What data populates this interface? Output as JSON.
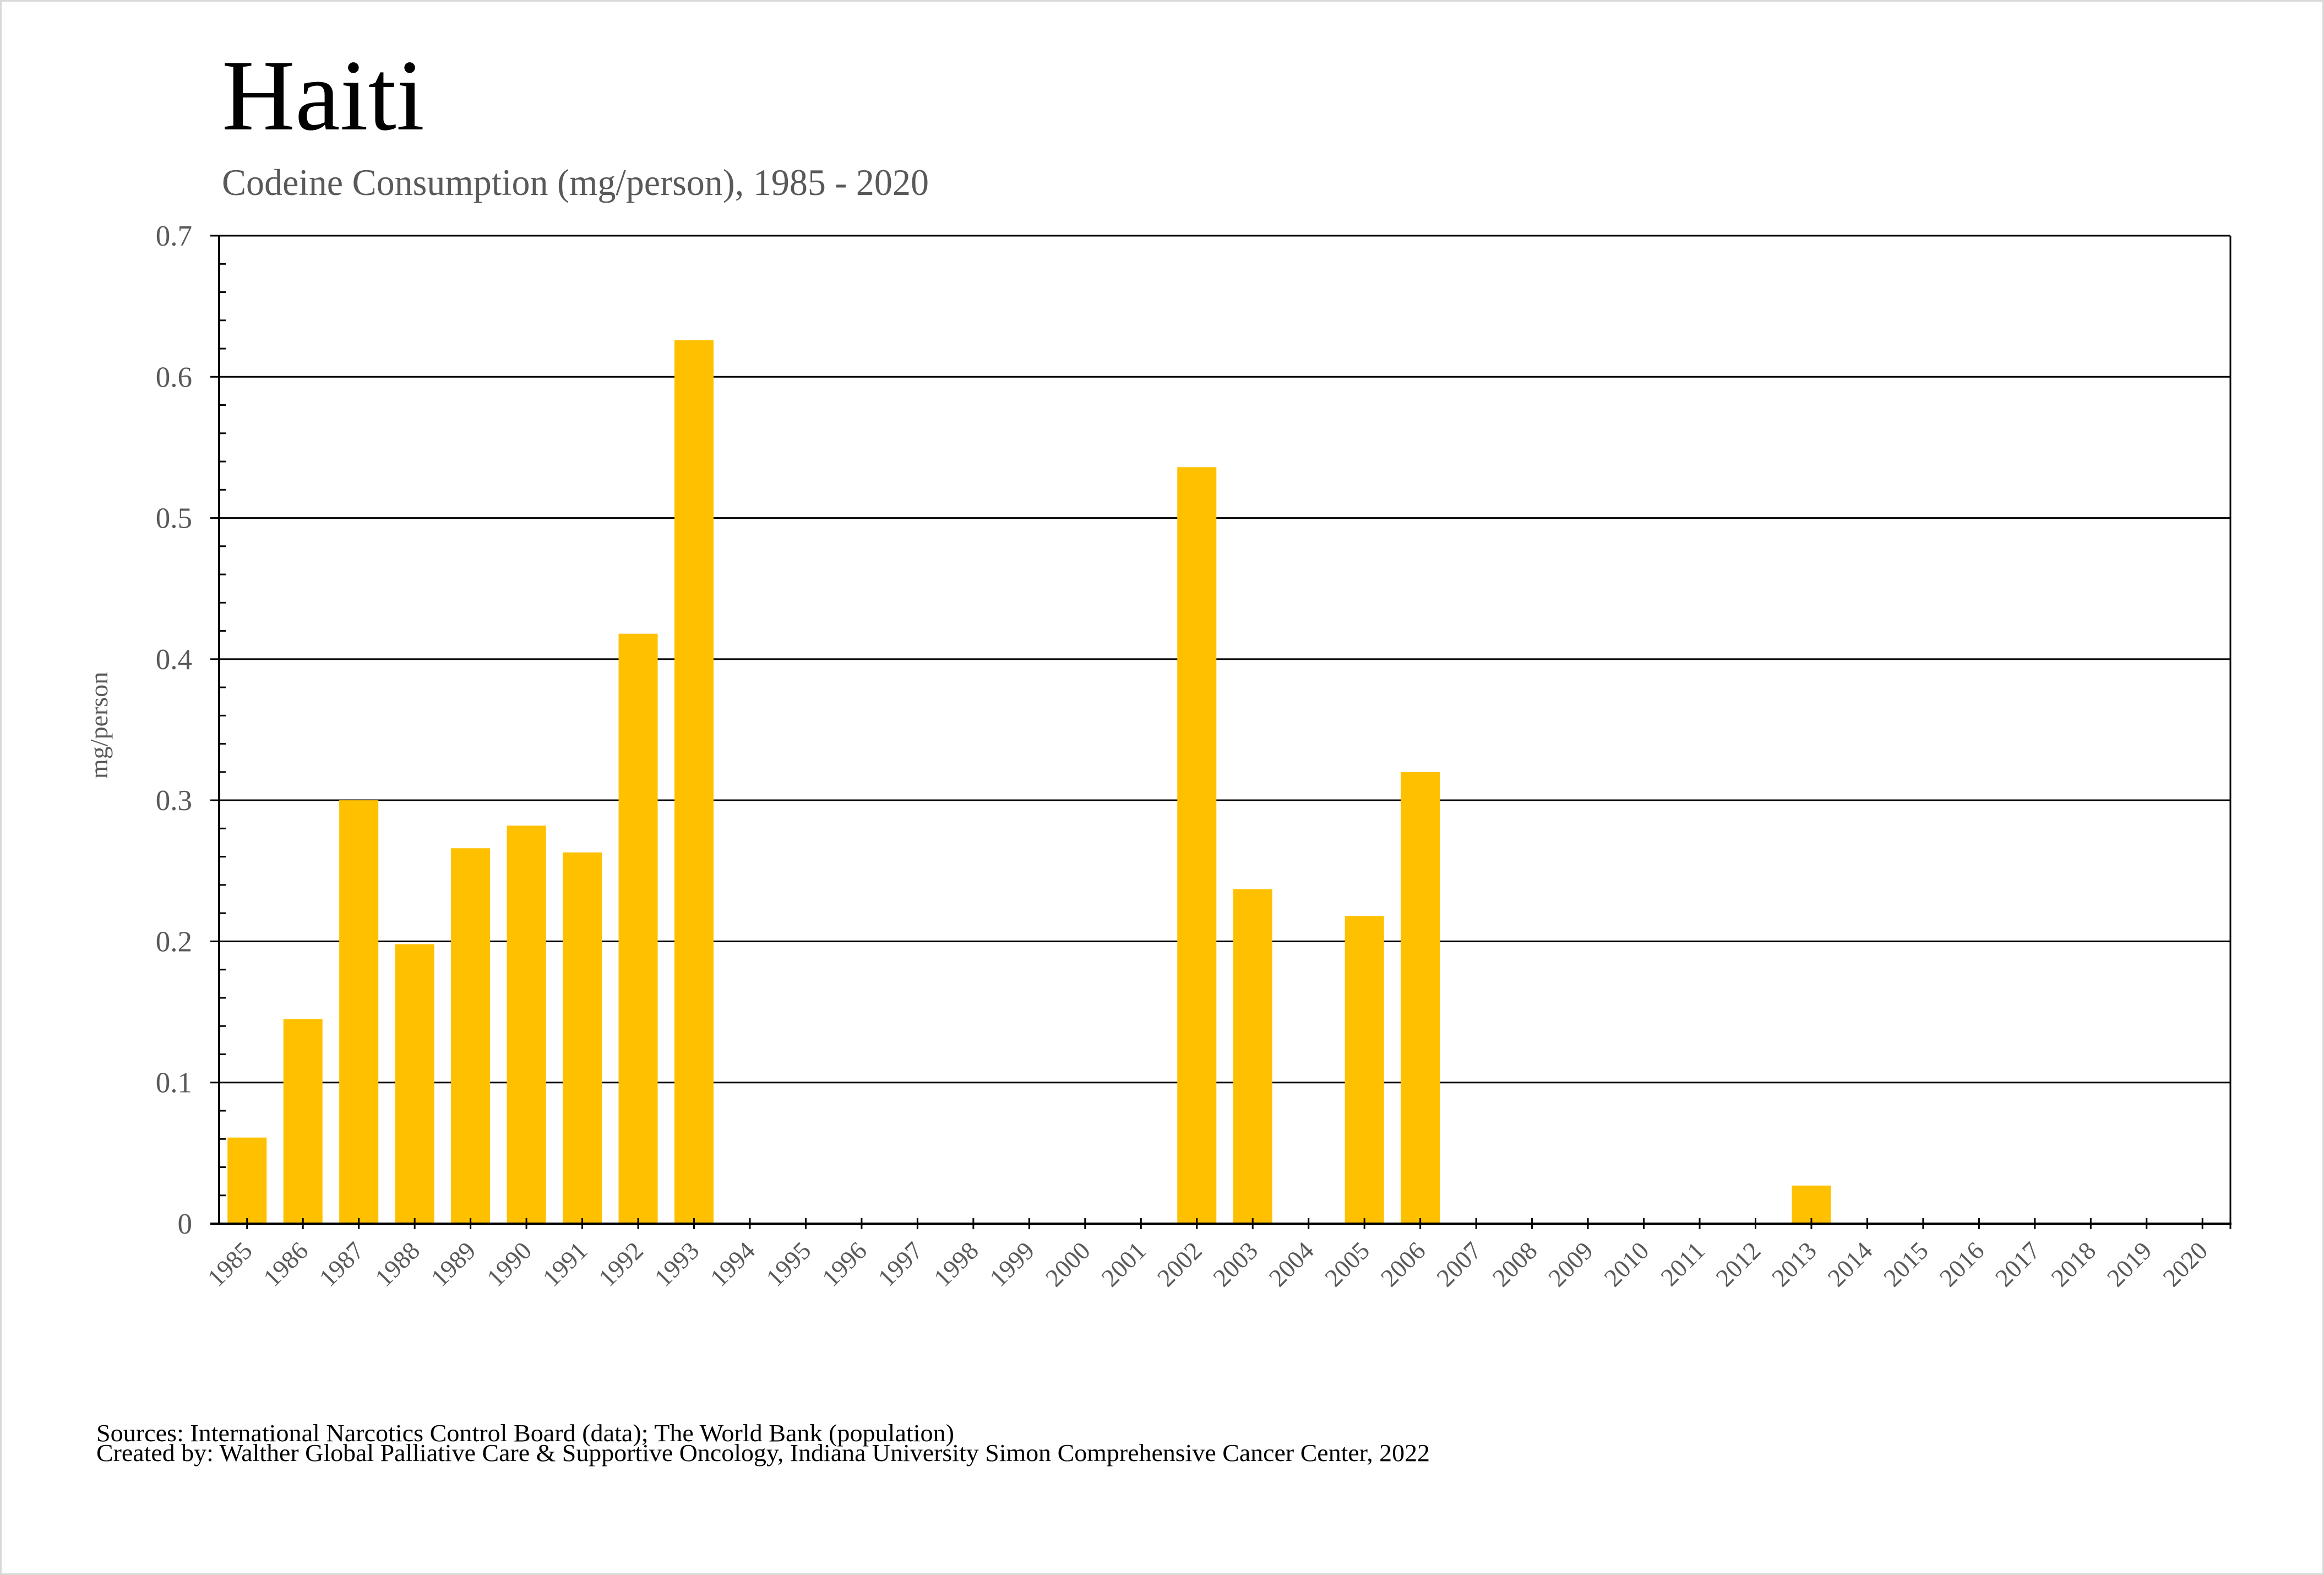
{
  "title": "Haiti",
  "subtitle": "Codeine Consumption (mg/person), 1985 - 2020",
  "footer": {
    "sources": "Sources: International Narcotics Control Board (data); The World Bank (population)",
    "created_by": "Created by: Walther Global Palliative Care & Supportive Oncology, Indiana University Simon Comprehensive Cancer Center, 2022"
  },
  "colors": {
    "bar": "#FFC000",
    "axis": "#000000",
    "tick_label": "#595959",
    "border": "#d9d9d9"
  },
  "chart_data": {
    "type": "bar",
    "title": "Haiti",
    "subtitle": "Codeine Consumption (mg/person), 1985 - 2020",
    "xlabel": "",
    "ylabel": "mg/person",
    "ylim": [
      0,
      0.7
    ],
    "yticks": [
      "0",
      "0.1",
      "0.2",
      "0.3",
      "0.4",
      "0.5",
      "0.6",
      "0.7"
    ],
    "ytick_values": [
      0,
      0.1,
      0.2,
      0.3,
      0.4,
      0.5,
      0.6,
      0.7
    ],
    "y_minor_step": 0.02,
    "grid": true,
    "legend": "none",
    "categories": [
      "1985",
      "1986",
      "1987",
      "1988",
      "1989",
      "1990",
      "1991",
      "1992",
      "1993",
      "1994",
      "1995",
      "1996",
      "1997",
      "1998",
      "1999",
      "2000",
      "2001",
      "2002",
      "2003",
      "2004",
      "2005",
      "2006",
      "2007",
      "2008",
      "2009",
      "2010",
      "2011",
      "2012",
      "2013",
      "2014",
      "2015",
      "2016",
      "2017",
      "2018",
      "2019",
      "2020"
    ],
    "values": [
      0.061,
      0.145,
      0.3,
      0.198,
      0.266,
      0.282,
      0.263,
      0.418,
      0.626,
      null,
      null,
      null,
      null,
      null,
      null,
      null,
      null,
      0.536,
      0.237,
      null,
      0.218,
      0.32,
      null,
      null,
      null,
      null,
      null,
      null,
      0.027,
      null,
      null,
      null,
      null,
      null,
      null,
      null
    ]
  }
}
